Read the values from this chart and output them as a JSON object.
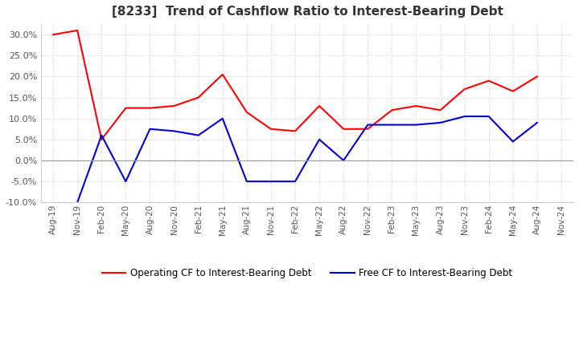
{
  "title": "[8233]  Trend of Cashflow Ratio to Interest-Bearing Debt",
  "title_fontsize": 11,
  "x_labels": [
    "Aug-19",
    "Nov-19",
    "Feb-20",
    "May-20",
    "Aug-20",
    "Nov-20",
    "Feb-21",
    "May-21",
    "Aug-21",
    "Nov-21",
    "Feb-22",
    "May-22",
    "Aug-22",
    "Nov-22",
    "Feb-23",
    "May-23",
    "Aug-23",
    "Nov-23",
    "Feb-24",
    "May-24",
    "Aug-24",
    "Nov-24"
  ],
  "operating_cf": [
    30.0,
    31.0,
    5.0,
    12.5,
    12.5,
    13.0,
    15.0,
    20.5,
    11.5,
    7.5,
    7.0,
    13.0,
    7.5,
    7.5,
    12.0,
    13.0,
    12.0,
    17.0,
    19.0,
    16.5,
    20.0,
    null
  ],
  "free_cf": [
    null,
    -10.0,
    6.0,
    -5.0,
    7.5,
    7.0,
    6.0,
    10.0,
    -5.0,
    -5.0,
    -5.0,
    5.0,
    0.0,
    8.5,
    8.5,
    8.5,
    9.0,
    10.5,
    10.5,
    4.5,
    9.0,
    null
  ],
  "ylim": [
    -10.0,
    32.5
  ],
  "yticks": [
    -10.0,
    -5.0,
    0.0,
    5.0,
    10.0,
    15.0,
    20.0,
    25.0,
    30.0
  ],
  "operating_color": "#FF0000",
  "free_color": "#0000CD",
  "grid_color": "#CCCCCC",
  "grid_style": "dotted",
  "background_color": "#FFFFFF",
  "legend_operating": "Operating CF to Interest-Bearing Debt",
  "legend_free": "Free CF to Interest-Bearing Debt"
}
